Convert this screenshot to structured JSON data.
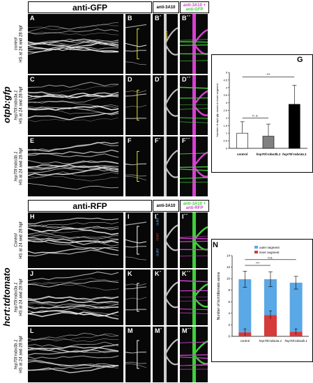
{
  "top": {
    "header_left": "anti-GFP",
    "header_mid": "anti-3A10",
    "header_right_a": "anti-3A10 +",
    "header_right_b": "anti-GFP",
    "sidebar": "otpb:gfp",
    "rows": [
      {
        "line1": "control",
        "line2": "HS at 24 and 28 hpf"
      },
      {
        "line1": "hsp70l:robo3a.1",
        "line2": "HS at 24 and 28 hpf"
      },
      {
        "line1": "hsp70l:robo3b.1",
        "line2": "HS at 24 and 28 hpf"
      }
    ],
    "panel_letters": [
      [
        "A",
        "B",
        "B´",
        "B´´"
      ],
      [
        "C",
        "D",
        "D´",
        "D´´"
      ],
      [
        "E",
        "F",
        "F´",
        "F´´"
      ]
    ],
    "inner_label": "inner"
  },
  "bottom": {
    "header_left": "anti-RFP",
    "header_mid": "anti-3A10",
    "header_right_a": "anti-3A10 +",
    "header_right_b": "anti-RFP",
    "sidebar": "hcrt:tdtomato",
    "rows": [
      {
        "line1": "Control",
        "line2": "HS at 24 and 28 hpf"
      },
      {
        "line1": "hsp70l:robo3a.1",
        "line2": "HS at 24 and 28 hpf"
      },
      {
        "line1": "hsp70l:robo3b.1",
        "line2": "HS at 24 and 28 hpf"
      }
    ],
    "panel_letters": [
      [
        "H",
        "I",
        "I´",
        "I´´"
      ],
      [
        "J",
        "K",
        "K´",
        "K´´"
      ],
      [
        "L",
        "M",
        "M´",
        "M´´"
      ]
    ],
    "segment_labels": [
      "outer",
      "inner",
      "outer"
    ]
  },
  "colors": {
    "magenta": "#d63fd2",
    "green": "#3fcf3a",
    "yellow": "#e8e020",
    "outer_bar": "#5aa8e6",
    "inner_bar": "#d63a3a"
  },
  "chart_data": [
    {
      "panel": "G",
      "type": "bar",
      "categories": [
        "control",
        "hsp70l:robo3b.1",
        "hsp70l:robo3a.1"
      ],
      "values": [
        1.0,
        0.8,
        2.9
      ],
      "errors": [
        0.75,
        0.8,
        1.25
      ],
      "colors": [
        "#ffffff",
        "#808080",
        "#000000"
      ],
      "ylabel": "Number of otpb:gfp axons in inner segment",
      "ylim": [
        0,
        5
      ],
      "yticks": [
        "0",
        "0.5",
        "1",
        "1.5",
        "2",
        "2.5",
        "3",
        "3.5",
        "4",
        "4.5",
        "5"
      ],
      "significance": [
        {
          "from": 0,
          "to": 1,
          "label": "n. s."
        },
        {
          "from": 0,
          "to": 2,
          "label": "***"
        }
      ]
    },
    {
      "panel": "N",
      "type": "bar",
      "stacked": true,
      "categories": [
        "control",
        "hsp70l:robo3a.1",
        "hsp70l:robo3b.1"
      ],
      "series": [
        {
          "name": "inner segment",
          "values": [
            0.7,
            3.7,
            0.8
          ]
        },
        {
          "name": "outer segment",
          "values": [
            9.2,
            6.2,
            8.5
          ]
        }
      ],
      "errors": [
        1.4,
        1.3,
        1.1
      ],
      "inner_errors": [
        0.6,
        0.7,
        0.5
      ],
      "ylabel": "Number of hcrt:tdtomato axons",
      "ylim": [
        0,
        14
      ],
      "yticks": [
        "0",
        "2",
        "4",
        "6",
        "8",
        "10",
        "12",
        "14"
      ],
      "significance": [
        {
          "from": 0,
          "to": 1,
          "label": "***"
        },
        {
          "from": 0,
          "to": 2,
          "label": "n.s."
        }
      ]
    }
  ]
}
